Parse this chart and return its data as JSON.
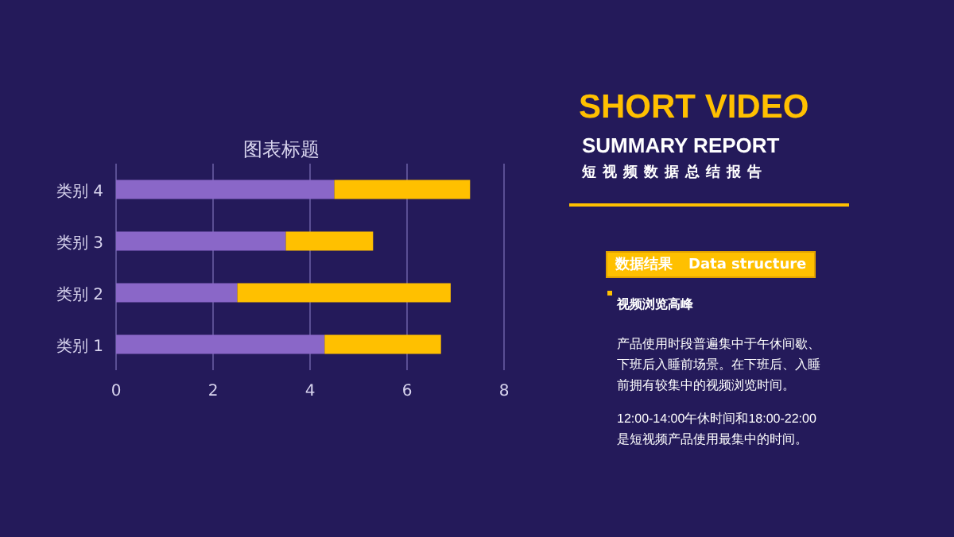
{
  "chart_data": {
    "type": "bar",
    "orientation": "horizontal",
    "stacked": true,
    "title": "图表标题",
    "categories": [
      "类别 4",
      "类别 3",
      "类别 2",
      "类别 1"
    ],
    "series": [
      {
        "color": "#8a67c8",
        "values": [
          4.5,
          3.5,
          2.5,
          4.3
        ]
      },
      {
        "color": "#ffc000",
        "values": [
          2.8,
          1.8,
          4.4,
          2.4
        ]
      }
    ],
    "xlim": [
      0,
      8
    ],
    "xticks": [
      0,
      2,
      4,
      6,
      8
    ],
    "grid": "x",
    "annotations": [
      "SHORT VIDEO",
      "SUMMARY REPORT",
      "短视频数据总结报告",
      "数据结果",
      "Data structure",
      "视频浏览高峰",
      "产品使用时段普遍集中于午休间歇、下班后入睡前场景。在下班后、入睡前拥有较集中的视频浏览时间。",
      "12:00-14:00午休时间和18:00-22:00是短视频产品使用最集中的时间。"
    ]
  }
}
